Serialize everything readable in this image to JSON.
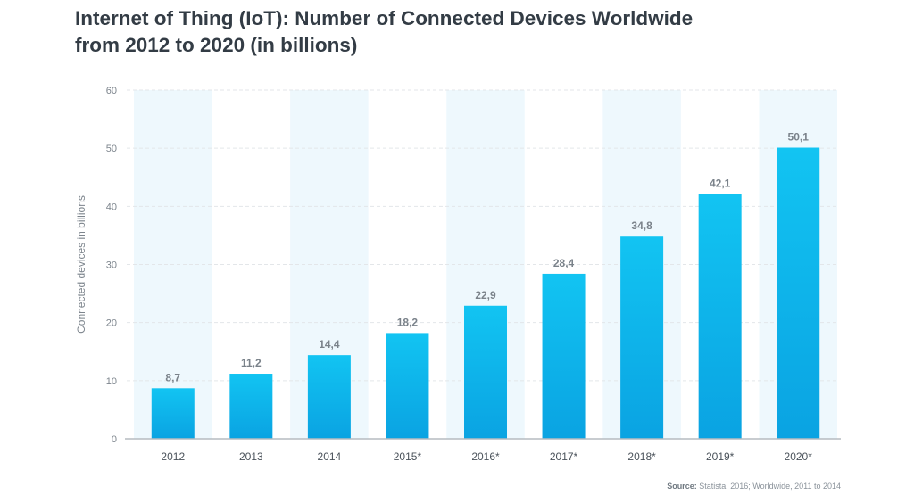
{
  "title_line1": "Internet of Thing (IoT): Number of Connected Devices Worldwide",
  "title_line2": "from 2012 to 2020 (in billions)",
  "source_label": "Source:",
  "source_text": "Statista, 2016; Worldwide, 2011 to 2014",
  "colors": {
    "bar_top": "#12c4f2",
    "bar_bottom": "#0aa3e2",
    "band": "#eef8fd",
    "grid": "#e3e6e9",
    "axis": "#b5bbc0",
    "tick_text": "#7d858d",
    "value_text": "#7a828a"
  },
  "chart_data": {
    "type": "bar",
    "title": "Internet of Thing (IoT): Number of Connected Devices Worldwide from 2012 to 2020 (in billions)",
    "xlabel": "",
    "ylabel": "Connected devices in billions",
    "categories": [
      "2012",
      "2013",
      "2014",
      "2015*",
      "2016*",
      "2017*",
      "2018*",
      "2019*",
      "2020*"
    ],
    "values": [
      8.7,
      11.2,
      14.4,
      18.2,
      22.9,
      28.4,
      34.8,
      42.1,
      50.1
    ],
    "value_labels": [
      "8,7",
      "11,2",
      "14,4",
      "18,2",
      "22,9",
      "28,4",
      "34,8",
      "42,1",
      "50,1"
    ],
    "ylim": [
      0,
      60
    ],
    "yticks": [
      0,
      10,
      20,
      30,
      40,
      50,
      60
    ],
    "grid": true,
    "legend": "none"
  }
}
